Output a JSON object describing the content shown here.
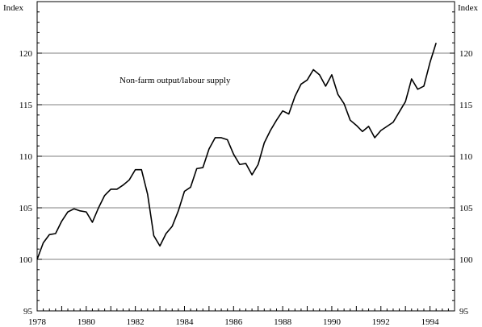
{
  "chart_data": {
    "type": "line",
    "title": "",
    "ylabel_left": "Index",
    "ylabel_right": "Index",
    "xlabel": "",
    "xlim": [
      1978,
      1995
    ],
    "ylim": [
      95,
      125
    ],
    "grid": "horizontal",
    "yticks": [
      95,
      100,
      105,
      110,
      115,
      120
    ],
    "xticks": [
      1978,
      1980,
      1982,
      1984,
      1986,
      1988,
      1990,
      1992,
      1994
    ],
    "annotations": [
      {
        "text": "Non-farm output/labour supply"
      }
    ],
    "series": [
      {
        "x": [
          1978.0,
          1978.25,
          1978.5,
          1978.75,
          1979.0,
          1979.25,
          1979.5,
          1979.75,
          1980.0,
          1980.25,
          1980.5,
          1980.75,
          1981.0,
          1981.25,
          1981.5,
          1981.75,
          1982.0,
          1982.25,
          1982.5,
          1982.75,
          1983.0,
          1983.25,
          1983.5,
          1983.75,
          1984.0,
          1984.25,
          1984.5,
          1984.75,
          1985.0,
          1985.25,
          1985.5,
          1985.75,
          1986.0,
          1986.25,
          1986.5,
          1986.75,
          1987.0,
          1987.25,
          1987.5,
          1987.75,
          1988.0,
          1988.25,
          1988.5,
          1988.75,
          1989.0,
          1989.25,
          1989.5,
          1989.75,
          1990.0,
          1990.25,
          1990.5,
          1990.75,
          1991.0,
          1991.25,
          1991.5,
          1991.75,
          1992.0,
          1992.25,
          1992.5,
          1992.75,
          1993.0,
          1993.25,
          1993.5,
          1993.75,
          1994.0,
          1994.25
        ],
        "values": [
          100.0,
          101.6,
          102.4,
          102.5,
          103.7,
          104.6,
          104.9,
          104.7,
          104.6,
          103.6,
          105.0,
          106.2,
          106.8,
          106.8,
          107.2,
          107.7,
          108.7,
          108.7,
          106.3,
          102.3,
          101.3,
          102.5,
          103.2,
          104.7,
          106.6,
          107.0,
          108.8,
          108.9,
          110.7,
          111.8,
          111.8,
          111.6,
          110.2,
          109.2,
          109.3,
          108.2,
          109.2,
          111.3,
          112.5,
          113.5,
          114.4,
          114.1,
          115.8,
          117.0,
          117.4,
          118.4,
          117.9,
          116.8,
          117.9,
          116.0,
          115.1,
          113.5,
          113.0,
          112.4,
          112.9,
          111.8,
          112.5,
          112.9,
          113.3,
          114.3,
          115.3,
          117.5,
          116.5,
          116.8,
          119.1,
          121.0
        ]
      }
    ]
  }
}
